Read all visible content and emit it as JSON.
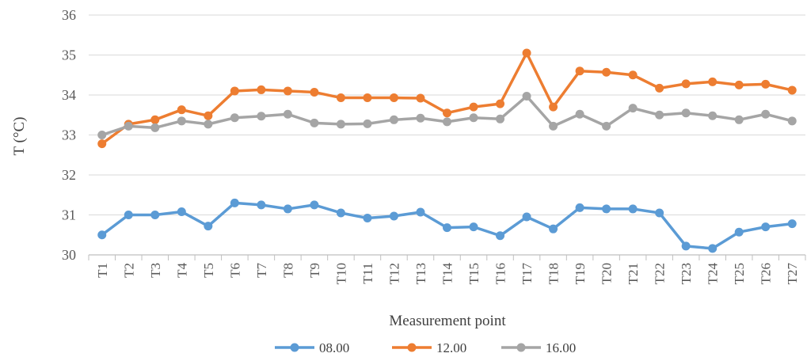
{
  "chart_data": {
    "type": "line",
    "title": "",
    "xlabel": "Measurement point",
    "ylabel": "T (°C)",
    "ylim": [
      30,
      36
    ],
    "yticks": [
      "30",
      "31",
      "32",
      "33",
      "34",
      "35",
      "36"
    ],
    "grid": true,
    "legend_position": "bottom",
    "categories": [
      "T1",
      "T2",
      "T3",
      "T4",
      "T5",
      "T6",
      "T7",
      "T8",
      "T9",
      "T10",
      "T11",
      "T12",
      "T13",
      "T14",
      "T15",
      "T16",
      "T17",
      "T18",
      "T19",
      "T20",
      "T21",
      "T22",
      "T23",
      "T24",
      "T25",
      "T26",
      "T27"
    ],
    "series": [
      {
        "name": "08.00",
        "color": "#5B9BD5",
        "values": [
          30.5,
          31.0,
          31.0,
          31.08,
          30.72,
          31.3,
          31.25,
          31.15,
          31.25,
          31.05,
          30.92,
          30.97,
          31.07,
          30.68,
          30.7,
          30.48,
          30.95,
          30.65,
          31.18,
          31.15,
          31.15,
          31.05,
          30.22,
          30.16,
          30.57,
          30.7,
          30.78
        ]
      },
      {
        "name": "12.00",
        "color": "#ED7D31",
        "values": [
          32.78,
          33.27,
          33.38,
          33.63,
          33.48,
          34.1,
          34.13,
          34.1,
          34.07,
          33.93,
          33.93,
          33.93,
          33.92,
          33.55,
          33.7,
          33.78,
          35.05,
          33.7,
          34.6,
          34.57,
          34.5,
          34.17,
          34.28,
          34.33,
          34.25,
          34.27,
          34.12
        ]
      },
      {
        "name": "16.00",
        "color": "#A5A5A5",
        "values": [
          33.0,
          33.22,
          33.18,
          33.35,
          33.27,
          33.43,
          33.47,
          33.52,
          33.3,
          33.27,
          33.28,
          33.38,
          33.42,
          33.33,
          33.43,
          33.4,
          33.97,
          33.22,
          33.52,
          33.22,
          33.67,
          33.5,
          33.55,
          33.48,
          33.38,
          33.52,
          33.35
        ]
      }
    ]
  }
}
